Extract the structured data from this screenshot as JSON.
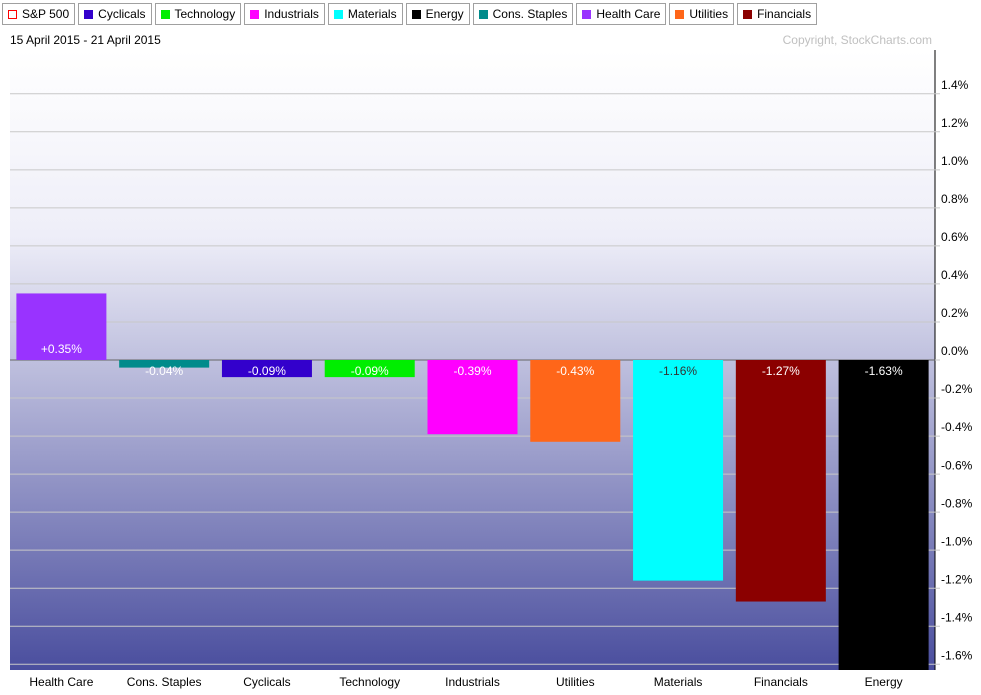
{
  "chart_data": {
    "type": "bar",
    "legend": [
      {
        "name": "S&P 500",
        "color": "#ff0000",
        "style": "hollow"
      },
      {
        "name": "Cyclicals",
        "color": "#3300cc"
      },
      {
        "name": "Technology",
        "color": "#00ee00"
      },
      {
        "name": "Industrials",
        "color": "#ff00ff"
      },
      {
        "name": "Materials",
        "color": "#00ffff"
      },
      {
        "name": "Energy",
        "color": "#000000"
      },
      {
        "name": "Cons. Staples",
        "color": "#008b8b"
      },
      {
        "name": "Health Care",
        "color": "#9933ff"
      },
      {
        "name": "Utilities",
        "color": "#ff6619"
      },
      {
        "name": "Financials",
        "color": "#8b0000"
      }
    ],
    "subtitle": "15 April 2015 - 21 April 2015",
    "copyright": "Copyright, StockCharts.com",
    "categories": [
      "Health Care",
      "Cons. Staples",
      "Cyclicals",
      "Technology",
      "Industrials",
      "Utilities",
      "Materials",
      "Financials",
      "Energy"
    ],
    "values": [
      0.35,
      -0.04,
      -0.09,
      -0.09,
      -0.39,
      -0.43,
      -1.16,
      -1.27,
      -1.63
    ],
    "value_labels": [
      "+0.35%",
      "-0.04%",
      "-0.09%",
      "-0.09%",
      "-0.39%",
      "-0.43%",
      "-1.16%",
      "-1.27%",
      "-1.63%"
    ],
    "colors": [
      "#9933ff",
      "#008b8b",
      "#3300cc",
      "#00ee00",
      "#ff00ff",
      "#ff6619",
      "#00ffff",
      "#8b0000",
      "#000000"
    ],
    "ylim": [
      -1.63,
      1.63
    ],
    "yticks": [
      {
        "value": 1.4,
        "label": "1.4%"
      },
      {
        "value": 1.2,
        "label": "1.2%"
      },
      {
        "value": 1.0,
        "label": "1.0%"
      },
      {
        "value": 0.8,
        "label": "0.8%"
      },
      {
        "value": 0.6,
        "label": "0.6%"
      },
      {
        "value": 0.4,
        "label": "0.4%"
      },
      {
        "value": 0.2,
        "label": "0.2%"
      },
      {
        "value": 0,
        "label": "0.0%"
      },
      {
        "value": -0.2,
        "label": "-0.2%"
      },
      {
        "value": -0.4,
        "label": "-0.4%"
      },
      {
        "value": -0.6,
        "label": "-0.6%"
      },
      {
        "value": -0.8,
        "label": "-0.8%"
      },
      {
        "value": -1.0,
        "label": "-1.0%"
      },
      {
        "value": -1.2,
        "label": "-1.2%"
      },
      {
        "value": -1.4,
        "label": "-1.4%"
      },
      {
        "value": -1.6,
        "label": "-1.6%"
      }
    ],
    "grid": true,
    "y_axis_side": "right"
  }
}
